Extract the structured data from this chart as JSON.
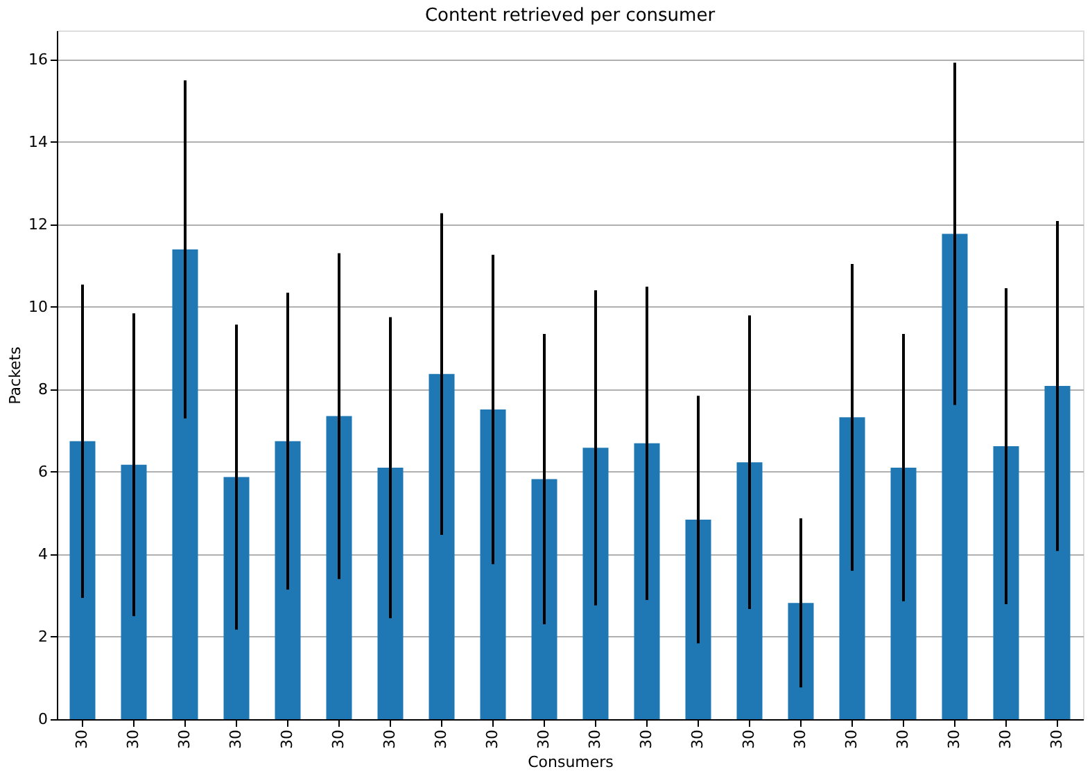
{
  "chart_data": {
    "type": "bar",
    "title": "Content retrieved per consumer",
    "xlabel": "Consumers",
    "ylabel": "Packets",
    "categories": [
      "30",
      "30",
      "30",
      "30",
      "30",
      "30",
      "30",
      "30",
      "30",
      "30",
      "30",
      "30",
      "30",
      "30",
      "30",
      "30",
      "30",
      "30",
      "30",
      "30"
    ],
    "values": [
      6.74,
      6.17,
      11.39,
      5.87,
      6.74,
      7.35,
      6.1,
      8.37,
      7.51,
      5.82,
      6.58,
      6.69,
      4.84,
      6.23,
      2.82,
      7.32,
      6.1,
      11.77,
      6.62,
      8.08
    ],
    "errors": [
      3.8,
      3.67,
      4.1,
      3.7,
      3.6,
      3.95,
      3.65,
      3.9,
      3.75,
      3.52,
      3.82,
      3.8,
      3.0,
      3.56,
      2.05,
      3.72,
      3.24,
      4.15,
      3.83,
      4.0
    ],
    "color": "#1f77b4",
    "ylim": [
      0,
      16.7
    ],
    "yticks": [
      0,
      2,
      4,
      6,
      8,
      10,
      12,
      14,
      16
    ],
    "grid": "y"
  }
}
